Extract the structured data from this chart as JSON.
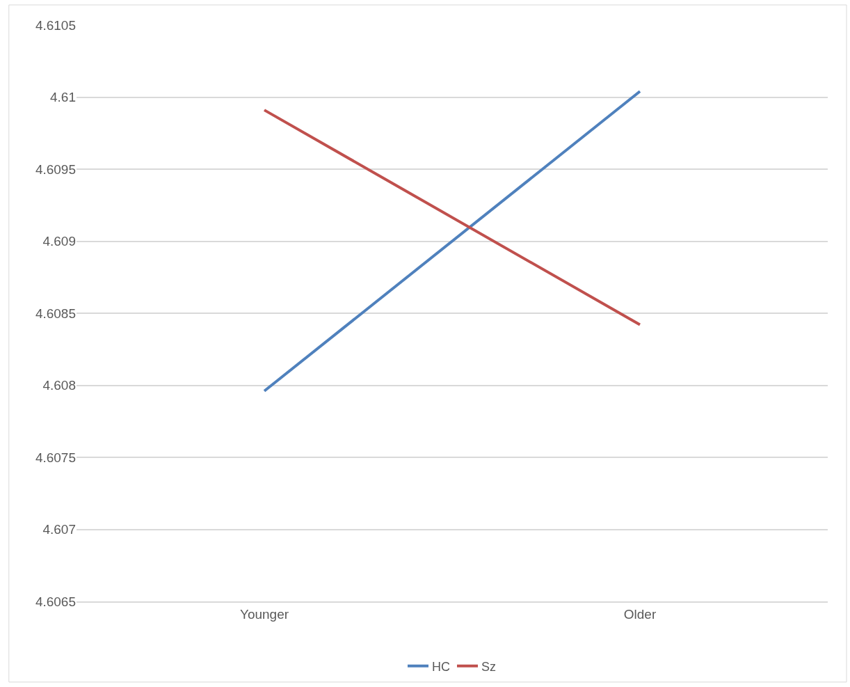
{
  "chart_data": {
    "type": "line",
    "categories": [
      "Younger",
      "Older"
    ],
    "series": [
      {
        "name": "HC",
        "color": "#4f81bd",
        "values": [
          4.60796,
          4.61004
        ]
      },
      {
        "name": "Sz",
        "color": "#c0504d",
        "values": [
          4.60991,
          4.60842
        ]
      }
    ],
    "ylim": [
      4.6065,
      4.6105
    ],
    "yticks": [
      4.6065,
      4.607,
      4.6075,
      4.608,
      4.6085,
      4.609,
      4.6095,
      4.61,
      4.6105
    ],
    "grid": "y",
    "legend": "bottom",
    "marker": "none",
    "line_style": "solid"
  }
}
